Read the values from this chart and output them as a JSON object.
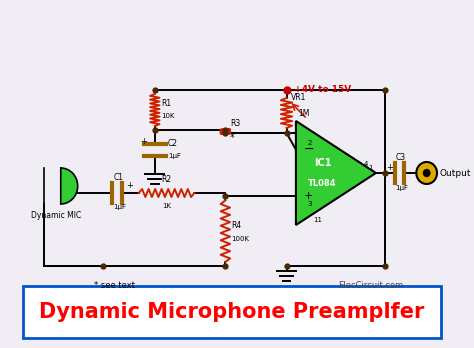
{
  "title": "Dynamic Microphone Preamplfer",
  "title_color": "#ff0000",
  "title_box_color": "#0055cc",
  "bg_color": "#f0edf5",
  "wire_color": "#000000",
  "resistor_color": "#cc2200",
  "opamp_color": "#33cc33",
  "mic_color": "#33cc33",
  "cap_color": "#996600",
  "output_color": "#ddaa00",
  "power_color": "#cc0000",
  "dot_color": "#4a2800",
  "label_color": "#000000",
  "website": "ElecCircuit.com",
  "see_text": "* see text"
}
